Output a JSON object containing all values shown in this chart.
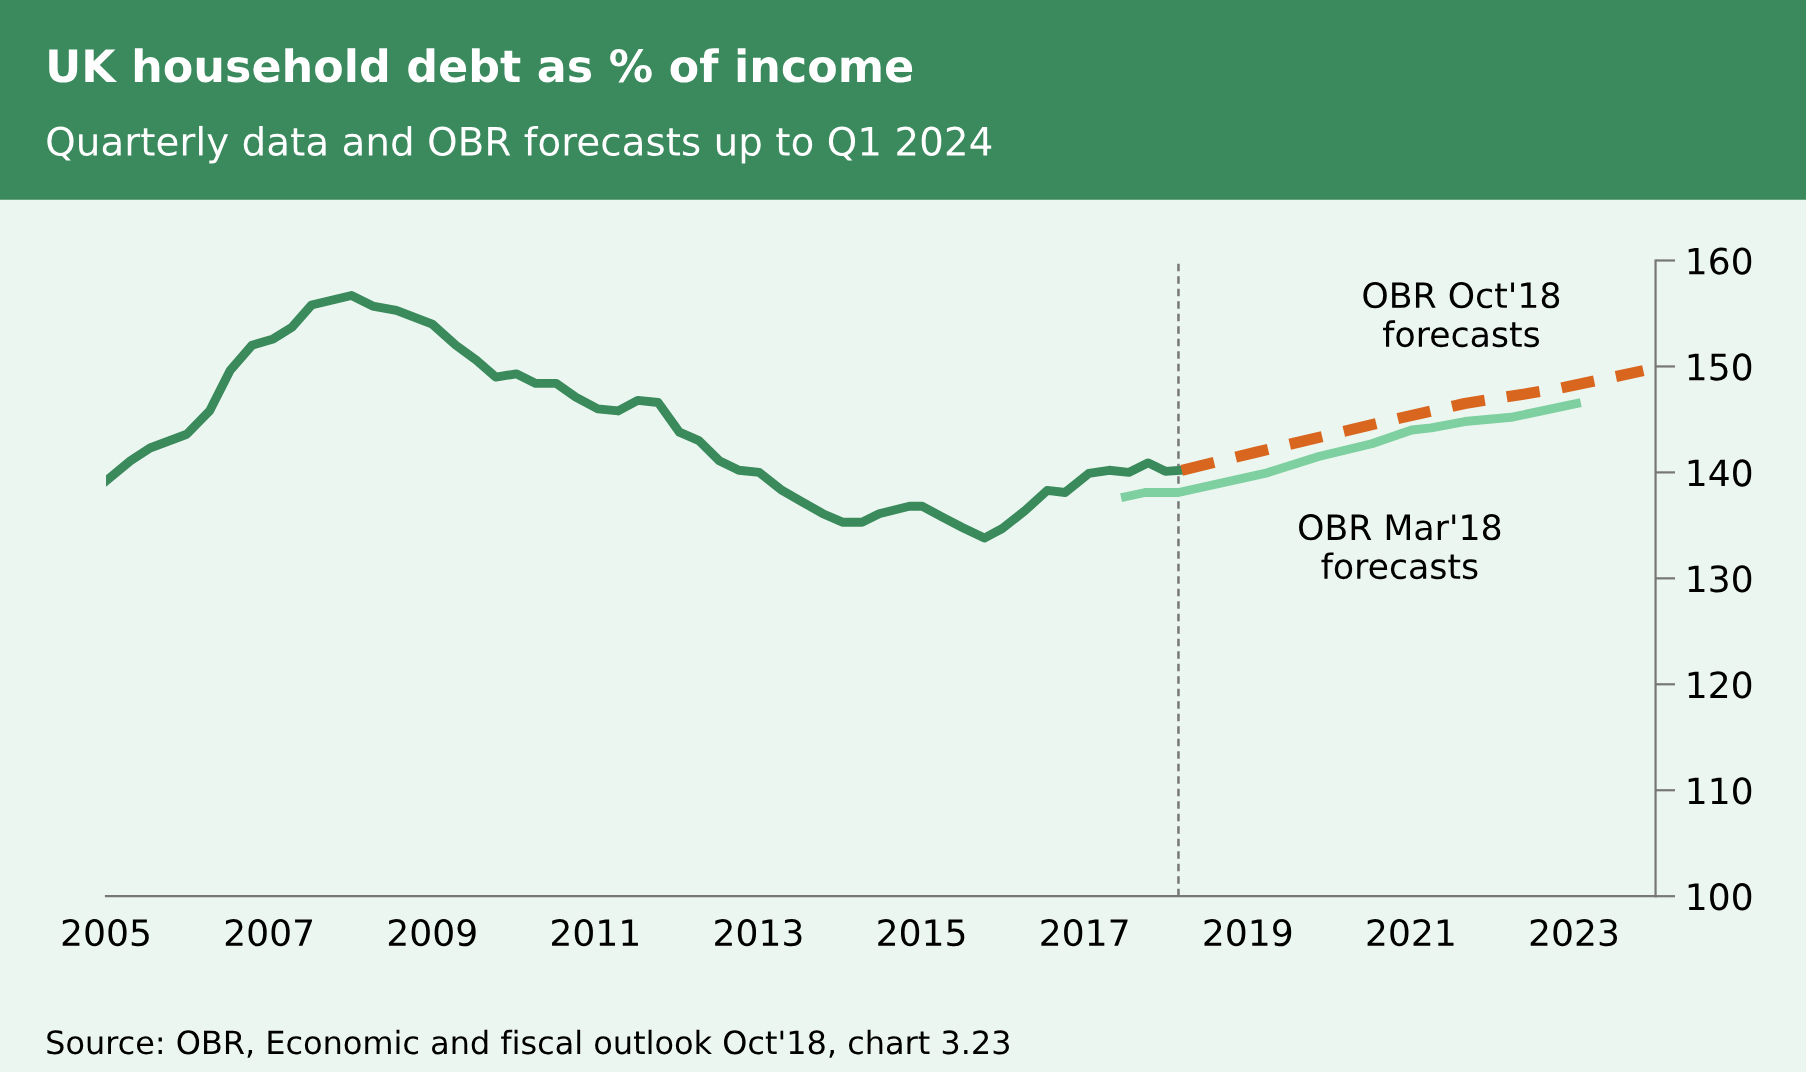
{
  "chart_data": {
    "type": "line",
    "title": "UK household debt as % of income",
    "subtitle": "Quarterly data and OBR forecasts up to Q1 2024",
    "annotations": [
      "Source: OBR, Economic and fiscal outlook Oct'18, chart 3.23"
    ],
    "series": [
      {
        "color": "#3a8a5c",
        "line_style": "solid",
        "x": [
          2005.0,
          2005.3,
          2005.54,
          2005.99,
          2006.27,
          2006.52,
          2006.79,
          2007.05,
          2007.28,
          2007.52,
          2008.01,
          2008.27,
          2008.56,
          2009.0,
          2009.29,
          2009.54,
          2009.78,
          2010.03,
          2010.27,
          2010.52,
          2010.76,
          2011.03,
          2011.28,
          2011.52,
          2011.77,
          2012.03,
          2012.27,
          2012.52,
          2012.76,
          2013.01,
          2013.29,
          2013.54,
          2013.79,
          2014.03,
          2014.27,
          2014.48,
          2014.85,
          2015.01,
          2015.25,
          2015.5,
          2015.77,
          2015.99,
          2016.27,
          2016.54,
          2016.76,
          2017.05,
          2017.3,
          2017.54,
          2017.78,
          2017.99,
          2018.17
        ],
        "values": [
          139.2,
          141.1,
          142.3,
          143.6,
          145.8,
          149.6,
          152.0,
          152.6,
          153.7,
          155.8,
          156.7,
          155.7,
          155.3,
          154.0,
          152.0,
          150.6,
          149.0,
          149.3,
          148.4,
          148.4,
          147.1,
          146.0,
          145.8,
          146.8,
          146.6,
          143.8,
          143.0,
          141.1,
          140.2,
          140.0,
          138.3,
          137.2,
          136.1,
          135.3,
          135.3,
          136.1,
          136.8,
          136.8,
          135.8,
          134.8,
          133.8,
          134.7,
          136.4,
          138.3,
          138.1,
          139.9,
          140.2,
          140.0,
          140.9,
          140.1,
          140.2
        ]
      },
      {
        "name": "OBR Oct'18\nforecasts",
        "color": "#d9661f",
        "line_style": "dashed",
        "x": [
          2018.19,
          2019.1,
          2020.03,
          2020.85,
          2021.66,
          2022.8,
          2023.85
        ],
        "values": [
          140.2,
          141.9,
          143.6,
          145.1,
          146.5,
          147.9,
          149.6
        ]
      },
      {
        "name": "OBR Mar'18\nforecasts",
        "color": "#7fd0a0",
        "line_style": "solid",
        "x": [
          2017.5,
          2017.74,
          2018.15,
          2019.21,
          2019.87,
          2020.52,
          2021.01,
          2021.25,
          2021.66,
          2022.23,
          2023.03
        ],
        "values": [
          137.7,
          138.1,
          138.1,
          139.9,
          141.5,
          142.7,
          144.0,
          144.2,
          144.8,
          145.2,
          146.5
        ]
      }
    ],
    "xlim": [
      2005,
      2024
    ],
    "xticks": [
      2005,
      2007,
      2009,
      2011,
      2013,
      2015,
      2017,
      2019,
      2021,
      2023
    ],
    "ylim": [
      100,
      160
    ],
    "yticks": [
      100,
      110,
      120,
      130,
      140,
      150,
      160
    ],
    "ref_lines": [
      {
        "axis": "x",
        "value": 2018.15,
        "color": "#777777",
        "line_style": "dashed"
      }
    ],
    "grid": false,
    "legend": false
  }
}
